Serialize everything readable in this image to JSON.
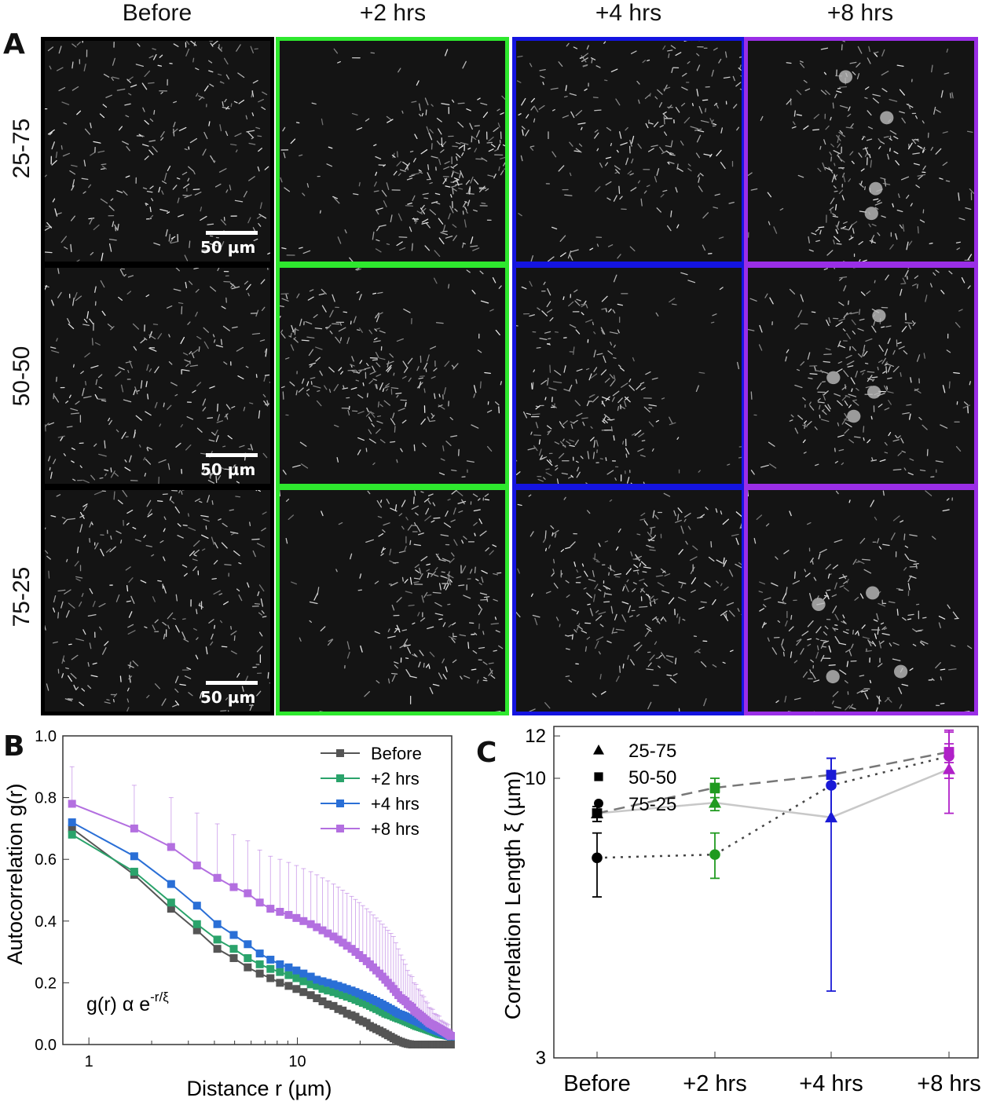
{
  "panel_a": {
    "letter": "A",
    "columns": [
      {
        "label": "Before",
        "color": "#000000"
      },
      {
        "label": "+2 hrs",
        "color": "#2ee82e"
      },
      {
        "label": "+4 hrs",
        "color": "#1414e0"
      },
      {
        "label": "+8 hrs",
        "color": "#9a2ee6"
      }
    ],
    "rows": [
      "25-75",
      "50-50",
      "75-25"
    ],
    "scale_bar_label": "50 µm"
  },
  "panel_b": {
    "letter": "B",
    "annotation": "g(r) α e",
    "annotation_sup": "-r/ξ"
  },
  "panel_c": {
    "letter": "C"
  },
  "chart_data": [
    {
      "type": "line",
      "xlabel": "Distance r (µm)",
      "ylabel": "Autocorrelation g(r)",
      "xscale": "log",
      "xlim": [
        0.75,
        55
      ],
      "ylim": [
        0.0,
        1.0
      ],
      "xticks": [
        1,
        10
      ],
      "yticks": [
        "0.0",
        "0.2",
        "0.4",
        "0.6",
        "0.8",
        "1.0"
      ],
      "legend": {
        "placement": "top-right"
      },
      "x": [
        0.83,
        1.65,
        2.48,
        3.3,
        4.13,
        4.95,
        5.78,
        6.6,
        7.43,
        8.25,
        9.08,
        9.9,
        10.7,
        11.6,
        12.4,
        13.2,
        14.0,
        14.9,
        15.7,
        16.5,
        17.3,
        18.2,
        19.0,
        19.8,
        20.6,
        21.5,
        22.3,
        23.1,
        23.9,
        24.8,
        25.6,
        26.4,
        27.2,
        28.1,
        28.9,
        29.7,
        30.5,
        31.4,
        32.2,
        33.0,
        33.8,
        34.7,
        35.5,
        36.3,
        37.1,
        38.0,
        38.8,
        39.6,
        40.4,
        41.3,
        42.1,
        42.9,
        43.7,
        44.6,
        45.4,
        46.2,
        47.0,
        47.9,
        48.7,
        49.5,
        50.3,
        51.2,
        52.0,
        52.8,
        53.6,
        54.5
      ],
      "series": [
        {
          "name": "Before",
          "color": "#555555",
          "values": [
            0.7,
            0.55,
            0.44,
            0.37,
            0.31,
            0.28,
            0.25,
            0.23,
            0.215,
            0.2,
            0.19,
            0.18,
            0.17,
            0.16,
            0.15,
            0.14,
            0.13,
            0.125,
            0.115,
            0.11,
            0.1,
            0.095,
            0.09,
            0.08,
            0.075,
            0.07,
            0.06,
            0.055,
            0.05,
            0.045,
            0.04,
            0.035,
            0.03,
            0.025,
            0.02,
            0.016,
            0.012,
            0.009,
            0.006,
            0.004,
            0.002,
            0.001,
            0,
            0,
            0,
            0,
            0,
            0,
            0,
            0,
            0,
            0,
            0,
            0,
            0,
            0,
            0,
            0,
            0,
            0,
            0,
            0,
            0,
            0,
            0,
            0
          ]
        },
        {
          "name": "+2 hrs",
          "color": "#2aa36b",
          "values": [
            0.68,
            0.56,
            0.46,
            0.39,
            0.34,
            0.31,
            0.28,
            0.26,
            0.245,
            0.235,
            0.225,
            0.215,
            0.205,
            0.195,
            0.19,
            0.18,
            0.175,
            0.17,
            0.165,
            0.16,
            0.155,
            0.15,
            0.145,
            0.14,
            0.135,
            0.13,
            0.125,
            0.12,
            0.115,
            0.11,
            0.105,
            0.1,
            0.097,
            0.094,
            0.09,
            0.087,
            0.084,
            0.081,
            0.078,
            0.075,
            0.072,
            0.069,
            0.066,
            0.063,
            0.06,
            0.058,
            0.056,
            0.054,
            0.052,
            0.05,
            0.048,
            0.046,
            0.044,
            0.042,
            0.04,
            0.038,
            0.036,
            0.034,
            0.033,
            0.032,
            0.031,
            0.03,
            0.029,
            0.028,
            0.027,
            0.026
          ]
        },
        {
          "name": "+4 hrs",
          "color": "#2a6fd6",
          "values": [
            0.72,
            0.61,
            0.52,
            0.45,
            0.39,
            0.355,
            0.325,
            0.295,
            0.275,
            0.26,
            0.25,
            0.24,
            0.23,
            0.22,
            0.21,
            0.205,
            0.2,
            0.195,
            0.19,
            0.185,
            0.18,
            0.175,
            0.17,
            0.165,
            0.16,
            0.155,
            0.15,
            0.145,
            0.14,
            0.135,
            0.13,
            0.125,
            0.12,
            0.115,
            0.11,
            0.105,
            0.1,
            0.097,
            0.094,
            0.091,
            0.088,
            0.085,
            0.082,
            0.079,
            0.076,
            0.073,
            0.07,
            0.067,
            0.064,
            0.061,
            0.058,
            0.055,
            0.052,
            0.05,
            0.048,
            0.046,
            0.044,
            0.042,
            0.04,
            0.038,
            0.036,
            0.034,
            0.032,
            0.03,
            0.028,
            0.026
          ]
        },
        {
          "name": "+8 hrs",
          "color": "#b36fe0",
          "values": [
            0.78,
            0.7,
            0.64,
            0.58,
            0.54,
            0.51,
            0.49,
            0.46,
            0.44,
            0.43,
            0.42,
            0.41,
            0.4,
            0.39,
            0.38,
            0.37,
            0.36,
            0.35,
            0.34,
            0.33,
            0.32,
            0.31,
            0.3,
            0.29,
            0.28,
            0.27,
            0.26,
            0.25,
            0.24,
            0.23,
            0.22,
            0.21,
            0.2,
            0.19,
            0.18,
            0.17,
            0.16,
            0.15,
            0.145,
            0.14,
            0.13,
            0.125,
            0.12,
            0.11,
            0.105,
            0.1,
            0.095,
            0.09,
            0.085,
            0.08,
            0.075,
            0.07,
            0.067,
            0.064,
            0.061,
            0.058,
            0.055,
            0.052,
            0.049,
            0.046,
            0.043,
            0.04,
            0.037,
            0.034,
            0.031,
            0.028
          ],
          "error": [
            0.12,
            0.14,
            0.16,
            0.17,
            0.175,
            0.17,
            0.17,
            0.17,
            0.17,
            0.17,
            0.17,
            0.17,
            0.17,
            0.17,
            0.17,
            0.17,
            0.17,
            0.17,
            0.17,
            0.17,
            0.17,
            0.17,
            0.17,
            0.17,
            0.17,
            0.17,
            0.17,
            0.17,
            0.17,
            0.17,
            0.17,
            0.17,
            0.17,
            0.17,
            0.17,
            0.16,
            0.15,
            0.14,
            0.13,
            0.12,
            0.11,
            0.1,
            0.1,
            0.09,
            0.09,
            0.08,
            0.08,
            0.07,
            0.07,
            0.06,
            0.06,
            0.05,
            0.05,
            0.05,
            0.04,
            0.04,
            0.04,
            0.04,
            0.03,
            0.03,
            0.03,
            0.03,
            0.03,
            0.03,
            0.02,
            0.02
          ]
        }
      ]
    },
    {
      "type": "scatter",
      "xlabel": "",
      "ylabel": "Correlation Length ξ (µm)",
      "yscale": "log",
      "categories": [
        "Before",
        "+2 hrs",
        "+4 hrs",
        "+8 hrs"
      ],
      "ylim": [
        3,
        12.5
      ],
      "yticks": [
        3,
        10,
        12
      ],
      "legend": {
        "placement": "top-left"
      },
      "point_colors": [
        "#000000",
        "#1f9a1f",
        "#1a1ad6",
        "#b020c8"
      ],
      "series": [
        {
          "name": "25-75",
          "marker": "triangle",
          "line": "solid",
          "line_color": "#c8c8c8",
          "values": [
            8.6,
            9.0,
            8.45,
            10.4
          ],
          "err_low": [
            8.3,
            8.7,
            4.0,
            8.6
          ],
          "err_high": [
            8.85,
            9.4,
            10.9,
            12.2
          ]
        },
        {
          "name": "50-50",
          "marker": "square",
          "line": "dashed",
          "line_color": "#777777",
          "values": [
            8.6,
            9.6,
            10.15,
            11.2
          ],
          "err_low": [
            8.3,
            9.2,
            9.6,
            10.7
          ],
          "err_high": [
            8.85,
            10.0,
            10.9,
            11.6
          ]
        },
        {
          "name": "75-25",
          "marker": "circle",
          "line": "dotted",
          "line_color": "#444444",
          "values": [
            7.1,
            7.2,
            9.7,
            11.0
          ],
          "err_low": [
            6.0,
            6.5,
            8.3,
            10.0
          ],
          "err_high": [
            7.9,
            7.9,
            10.9,
            12.3
          ]
        }
      ]
    }
  ]
}
